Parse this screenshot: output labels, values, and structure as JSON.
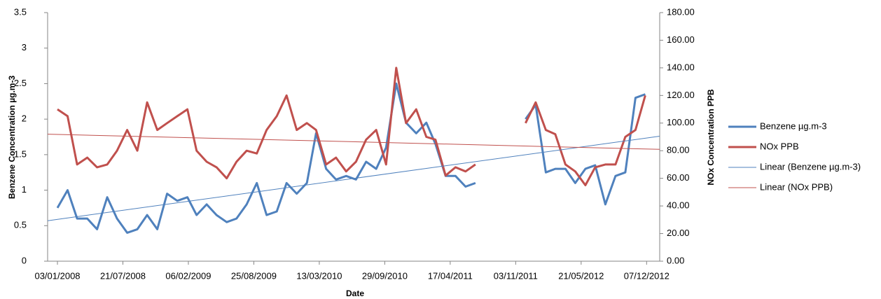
{
  "chart_data": {
    "type": "line",
    "x_label": "Date",
    "y_label": "Benzene Concentration µg.m-3",
    "y2_label": "NOx Concentration PPB",
    "x": [
      "2008-01-03",
      "2008-02-03",
      "2008-03-03",
      "2008-04-03",
      "2008-05-03",
      "2008-06-03",
      "2008-07-03",
      "2008-08-03",
      "2008-09-03",
      "2008-10-03",
      "2008-11-03",
      "2008-12-03",
      "2009-01-03",
      "2009-02-03",
      "2009-03-03",
      "2009-04-03",
      "2009-05-03",
      "2009-06-03",
      "2009-07-03",
      "2009-08-03",
      "2009-09-03",
      "2009-10-03",
      "2009-11-03",
      "2009-12-03",
      "2010-01-03",
      "2010-02-03",
      "2010-03-03",
      "2010-04-03",
      "2010-05-03",
      "2010-06-03",
      "2010-07-03",
      "2010-08-03",
      "2010-09-03",
      "2010-10-03",
      "2010-11-03",
      "2010-12-03",
      "2011-01-03",
      "2011-02-03",
      "2011-03-03",
      "2011-04-03",
      "2011-05-03",
      "2011-06-03",
      "2011-07-03",
      "2011-08-03",
      "2011-09-03",
      "2011-10-03",
      "2011-11-03",
      "2011-12-03",
      "2012-01-03",
      "2012-02-03",
      "2012-03-03",
      "2012-04-03",
      "2012-05-03",
      "2012-06-03",
      "2012-07-03",
      "2012-08-03",
      "2012-09-03",
      "2012-10-03",
      "2012-11-03",
      "2012-12-03"
    ],
    "series": [
      {
        "name": "Benzene µg.m-3",
        "color": "#4f81bd",
        "axis": "y",
        "width": 3,
        "values": [
          0.75,
          1.0,
          0.6,
          0.6,
          0.45,
          0.9,
          0.6,
          0.4,
          0.45,
          0.65,
          0.45,
          0.95,
          0.85,
          0.9,
          0.65,
          0.8,
          0.65,
          0.55,
          0.6,
          0.8,
          1.1,
          0.65,
          0.7,
          1.1,
          0.95,
          1.1,
          1.8,
          1.3,
          1.15,
          1.2,
          1.15,
          1.4,
          1.3,
          1.6,
          2.5,
          1.95,
          1.8,
          1.95,
          1.65,
          1.2,
          1.2,
          1.05,
          1.1,
          null,
          null,
          null,
          null,
          2.0,
          2.2,
          1.25,
          1.3,
          1.3,
          1.1,
          1.3,
          1.35,
          0.8,
          1.2,
          1.25,
          2.3,
          2.35
        ]
      },
      {
        "name": "NOx PPB",
        "color": "#c0504d",
        "axis": "y2",
        "width": 3,
        "values": [
          110,
          105,
          70,
          75,
          68,
          70,
          80,
          95,
          80,
          115,
          95,
          100,
          105,
          110,
          80,
          72,
          68,
          60,
          72,
          80,
          78,
          95,
          105,
          120,
          95,
          100,
          95,
          70,
          75,
          65,
          72,
          88,
          95,
          70,
          140,
          100,
          110,
          90,
          88,
          62,
          68,
          65,
          70,
          null,
          null,
          null,
          null,
          100,
          115,
          95,
          92,
          70,
          65,
          55,
          68,
          70,
          70,
          90,
          95,
          120
        ]
      },
      {
        "name": "Linear (Benzene µg.m-3)",
        "color": "#4f81bd",
        "axis": "y",
        "width": 1,
        "x": [
          "2007-12-04",
          "2013-01-16"
        ],
        "values": [
          0.57,
          1.76
        ]
      },
      {
        "name": "Linear (NOx PPB)",
        "color": "#c0504d",
        "axis": "y2",
        "width": 1,
        "x": [
          "2007-12-04",
          "2013-01-16"
        ],
        "values": [
          92,
          81
        ]
      }
    ],
    "xlim": [
      "2007-12-04",
      "2013-01-16"
    ],
    "xticks": [
      {
        "value": "2008-01-03",
        "label": "03/01/2008"
      },
      {
        "value": "2008-07-21",
        "label": "21/07/2008"
      },
      {
        "value": "2009-02-06",
        "label": "06/02/2009"
      },
      {
        "value": "2009-08-25",
        "label": "25/08/2009"
      },
      {
        "value": "2010-03-13",
        "label": "13/03/2010"
      },
      {
        "value": "2010-09-29",
        "label": "29/09/2010"
      },
      {
        "value": "2011-04-17",
        "label": "17/04/2011"
      },
      {
        "value": "2011-11-03",
        "label": "03/11/2011"
      },
      {
        "value": "2012-05-21",
        "label": "21/05/2012"
      },
      {
        "value": "2012-12-07",
        "label": "07/12/2012"
      }
    ],
    "ylim": [
      0,
      3.5
    ],
    "yticks": [
      0,
      0.5,
      1,
      1.5,
      2,
      2.5,
      3,
      3.5
    ],
    "y2lim": [
      0,
      180
    ],
    "y2ticks": [
      {
        "value": 0,
        "label": "0.00"
      },
      {
        "value": 20,
        "label": "20.00"
      },
      {
        "value": 40,
        "label": "40.00"
      },
      {
        "value": 60,
        "label": "60.00"
      },
      {
        "value": 80,
        "label": "80.00"
      },
      {
        "value": 100,
        "label": "100.00"
      },
      {
        "value": 120,
        "label": "120.00"
      },
      {
        "value": 140,
        "label": "140.00"
      },
      {
        "value": 160,
        "label": "160.00"
      },
      {
        "value": 180,
        "label": "180.00"
      }
    ],
    "grid": false,
    "legend": "right"
  }
}
